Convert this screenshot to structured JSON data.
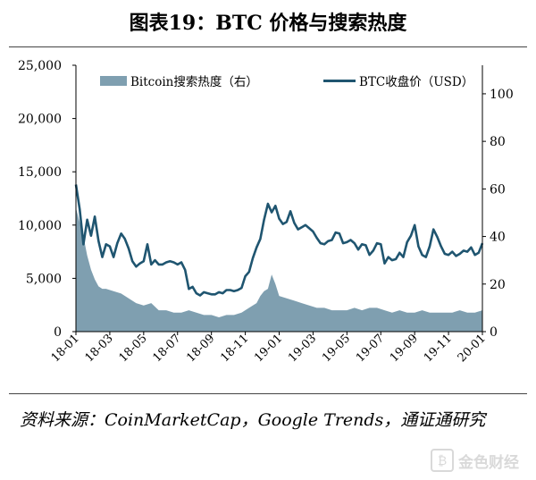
{
  "title": "图表19：BTC 价格与搜索热度",
  "source": "资料来源：CoinMarketCap，Google Trends，通证通研究",
  "watermark": {
    "text": "金色财经",
    "icon": "logo-icon"
  },
  "colors": {
    "price_line": "#1f5570",
    "search_area": "#7f9fb0",
    "axis": "#000000"
  },
  "chart_data": {
    "type": "line",
    "legend_position": "top",
    "grid": false,
    "x_ticks": [
      "18-01",
      "18-03",
      "18-05",
      "18-07",
      "18-09",
      "18-11",
      "19-01",
      "19-03",
      "19-05",
      "19-07",
      "19-09",
      "19-11",
      "20-01"
    ],
    "x_range": [
      0,
      108
    ],
    "y_left": {
      "ticks": [
        "0",
        "5,000",
        "10,000",
        "15,000",
        "20,000",
        "25,000"
      ],
      "range": [
        0,
        25000
      ]
    },
    "y_right": {
      "ticks": [
        "0",
        "20",
        "40",
        "60",
        "80",
        "100"
      ],
      "range": [
        0,
        112
      ]
    },
    "series": [
      {
        "name": "BTC收盘价（USD）",
        "axis": "left",
        "style": "line",
        "x": [
          0,
          1,
          2,
          3,
          4,
          5,
          6,
          7,
          8,
          9,
          10,
          11,
          12,
          13,
          14,
          15,
          16,
          17,
          18,
          19,
          20,
          21,
          22,
          23,
          24,
          25,
          26,
          27,
          28,
          29,
          30,
          31,
          32,
          33,
          34,
          35,
          36,
          37,
          38,
          39,
          40,
          41,
          42,
          43,
          44,
          45,
          46,
          47,
          48,
          49,
          50,
          51,
          52,
          53,
          54,
          55,
          56,
          57,
          58,
          59,
          60,
          61,
          62,
          63,
          64,
          65,
          66,
          67,
          68,
          69,
          70,
          71,
          72,
          73,
          74,
          75,
          76,
          77,
          78,
          79,
          80,
          81,
          82,
          83,
          84,
          85,
          86,
          87,
          88,
          89,
          90,
          91,
          92,
          93,
          94,
          95,
          96,
          97,
          98,
          99,
          100,
          101,
          102,
          103,
          104,
          105,
          106,
          107,
          108
        ],
        "values": [
          13800,
          11500,
          8200,
          10500,
          9000,
          10800,
          8500,
          7000,
          8200,
          8000,
          7000,
          8300,
          9200,
          8700,
          7800,
          6600,
          6100,
          6400,
          6600,
          8200,
          6300,
          6700,
          6300,
          6300,
          6500,
          6600,
          6500,
          6300,
          6500,
          5800,
          4000,
          4200,
          3600,
          3400,
          3700,
          3600,
          3500,
          3500,
          3700,
          3600,
          3900,
          3900,
          3800,
          3900,
          4100,
          5200,
          5600,
          6900,
          7900,
          8700,
          10500,
          12000,
          11200,
          11800,
          10600,
          10100,
          10300,
          11300,
          10200,
          9600,
          9800,
          10000,
          9700,
          9400,
          8800,
          8300,
          8200,
          8500,
          8600,
          9300,
          9200,
          8300,
          8400,
          8600,
          8300,
          7700,
          8200,
          8100,
          7200,
          7600,
          8300,
          8200,
          6400,
          7000,
          6700,
          6800,
          7400,
          7000,
          8400,
          9000,
          10000,
          8000,
          7200,
          7000,
          8000,
          9600,
          8900,
          8000,
          7300,
          7200,
          7500,
          7100,
          7300,
          7600,
          7500,
          7900,
          7200,
          7400,
          8300
        ],
        "note": "approximate weekly readings"
      },
      {
        "name": "Bitcoin搜索热度（右）",
        "axis": "right",
        "style": "area",
        "x": [
          0,
          2,
          3,
          4,
          5,
          6,
          7,
          8,
          10,
          12,
          14,
          16,
          18,
          20,
          22,
          24,
          26,
          28,
          30,
          32,
          34,
          36,
          38,
          40,
          42,
          44,
          46,
          48,
          49,
          50,
          51,
          52,
          53,
          54,
          56,
          58,
          60,
          62,
          64,
          66,
          68,
          70,
          72,
          74,
          76,
          78,
          80,
          82,
          84,
          86,
          88,
          90,
          92,
          94,
          96,
          98,
          100,
          102,
          104,
          106,
          108
        ],
        "values": [
          52,
          40,
          32,
          26,
          22,
          19,
          18,
          18,
          17,
          16,
          14,
          12,
          11,
          12,
          9,
          9,
          8,
          8,
          9,
          8,
          7,
          7,
          6,
          7,
          7,
          8,
          10,
          12,
          15,
          17,
          18,
          24,
          20,
          15,
          14,
          13,
          12,
          11,
          10,
          10,
          9,
          9,
          9,
          10,
          9,
          10,
          10,
          9,
          8,
          9,
          8,
          8,
          9,
          8,
          8,
          8,
          8,
          9,
          8,
          8,
          9
        ]
      }
    ]
  }
}
